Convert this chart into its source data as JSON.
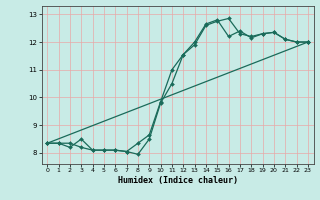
{
  "title": "",
  "xlabel": "Humidex (Indice chaleur)",
  "xlim": [
    -0.5,
    23.5
  ],
  "ylim": [
    7.6,
    13.3
  ],
  "yticks": [
    8,
    9,
    10,
    11,
    12,
    13
  ],
  "xticks": [
    0,
    1,
    2,
    3,
    4,
    5,
    6,
    7,
    8,
    9,
    10,
    11,
    12,
    13,
    14,
    15,
    16,
    17,
    18,
    19,
    20,
    21,
    22,
    23
  ],
  "bg_color": "#c8ebe6",
  "grid_color": "#e8a8a8",
  "line_color": "#1a6b5a",
  "line1_x": [
    0,
    1,
    2,
    3,
    4,
    5,
    6,
    7,
    8,
    9,
    10,
    11,
    12,
    13,
    14,
    15,
    16,
    17,
    18,
    19,
    20,
    21,
    22,
    23
  ],
  "line1_y": [
    8.35,
    8.35,
    8.35,
    8.2,
    8.1,
    8.1,
    8.1,
    8.05,
    7.95,
    8.5,
    9.8,
    10.5,
    11.55,
    11.9,
    12.6,
    12.75,
    12.85,
    12.3,
    12.2,
    12.3,
    12.35,
    12.1,
    12.0,
    12.0
  ],
  "line2_x": [
    0,
    1,
    2,
    3,
    4,
    5,
    6,
    7,
    8,
    9,
    10,
    11,
    12,
    13,
    14,
    15,
    16,
    17,
    18,
    19,
    20,
    21,
    22,
    23
  ],
  "line2_y": [
    8.35,
    8.35,
    8.2,
    8.5,
    8.1,
    8.1,
    8.1,
    8.05,
    8.35,
    8.65,
    9.85,
    11.0,
    11.55,
    12.0,
    12.65,
    12.8,
    12.2,
    12.4,
    12.15,
    12.3,
    12.35,
    12.1,
    12.0,
    12.0
  ],
  "line3_x": [
    0,
    23
  ],
  "line3_y": [
    8.35,
    12.0
  ],
  "markersize": 2.0,
  "linewidth": 0.9
}
